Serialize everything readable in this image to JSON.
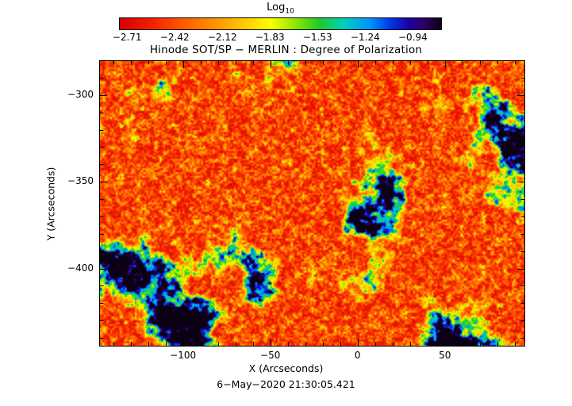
{
  "figure": {
    "colorbar_scale_label": "Log",
    "colorbar_scale_sub": "10",
    "title": "Hinode SOT/SP − MERLIN : Degree of Polarization",
    "xlabel": "X (Arcseconds)",
    "ylabel": "Y (Arcseconds)",
    "timestamp": "6−May−2020 21:30:05.421"
  },
  "chart_data": {
    "type": "heatmap",
    "title": "Hinode SOT/SP - MERLIN : Degree of Polarization",
    "colorbar_label": "Log10",
    "colorbar_ticks": [
      -2.71,
      -2.42,
      -2.12,
      -1.83,
      -1.53,
      -1.24,
      -0.94
    ],
    "xlabel": "X (Arcseconds)",
    "ylabel": "Y (Arcseconds)",
    "xlim": [
      -148,
      96
    ],
    "ylim": [
      -445,
      -280
    ],
    "x_major_ticks": [
      -100,
      -50,
      0,
      50
    ],
    "y_major_ticks": [
      -300,
      -350,
      -400
    ],
    "minor_tick_step": 10,
    "timestamp": "6-May-2020 21:30:05.421",
    "value_description": "Log10 degree of polarization map: field dominated by low values near -2.7 to -2.3 (red/orange granulation with yellow speckles), magnetic network lanes near -1.8 to -1.5 (green/cyan), and sparse compact strong-polarization patches up to -0.94 (blue/dark violet)",
    "colormap": [
      [
        0.0,
        "#d40000"
      ],
      [
        0.1,
        "#f32000"
      ],
      [
        0.2,
        "#ff5c00"
      ],
      [
        0.3,
        "#ff9400"
      ],
      [
        0.4,
        "#ffd200"
      ],
      [
        0.47,
        "#faff00"
      ],
      [
        0.54,
        "#9ae800"
      ],
      [
        0.62,
        "#1ecc28"
      ],
      [
        0.7,
        "#00cfc0"
      ],
      [
        0.78,
        "#0090ff"
      ],
      [
        0.84,
        "#0038e8"
      ],
      [
        0.9,
        "#1c00a8"
      ],
      [
        0.95,
        "#2e0060"
      ],
      [
        1.0,
        "#0c0014"
      ]
    ],
    "noise_seed": 42,
    "render": {
      "base_offset": 0.04,
      "speckle_gain": 0.5,
      "network_threshold": 0.575,
      "network_gain": 5.2
    }
  }
}
